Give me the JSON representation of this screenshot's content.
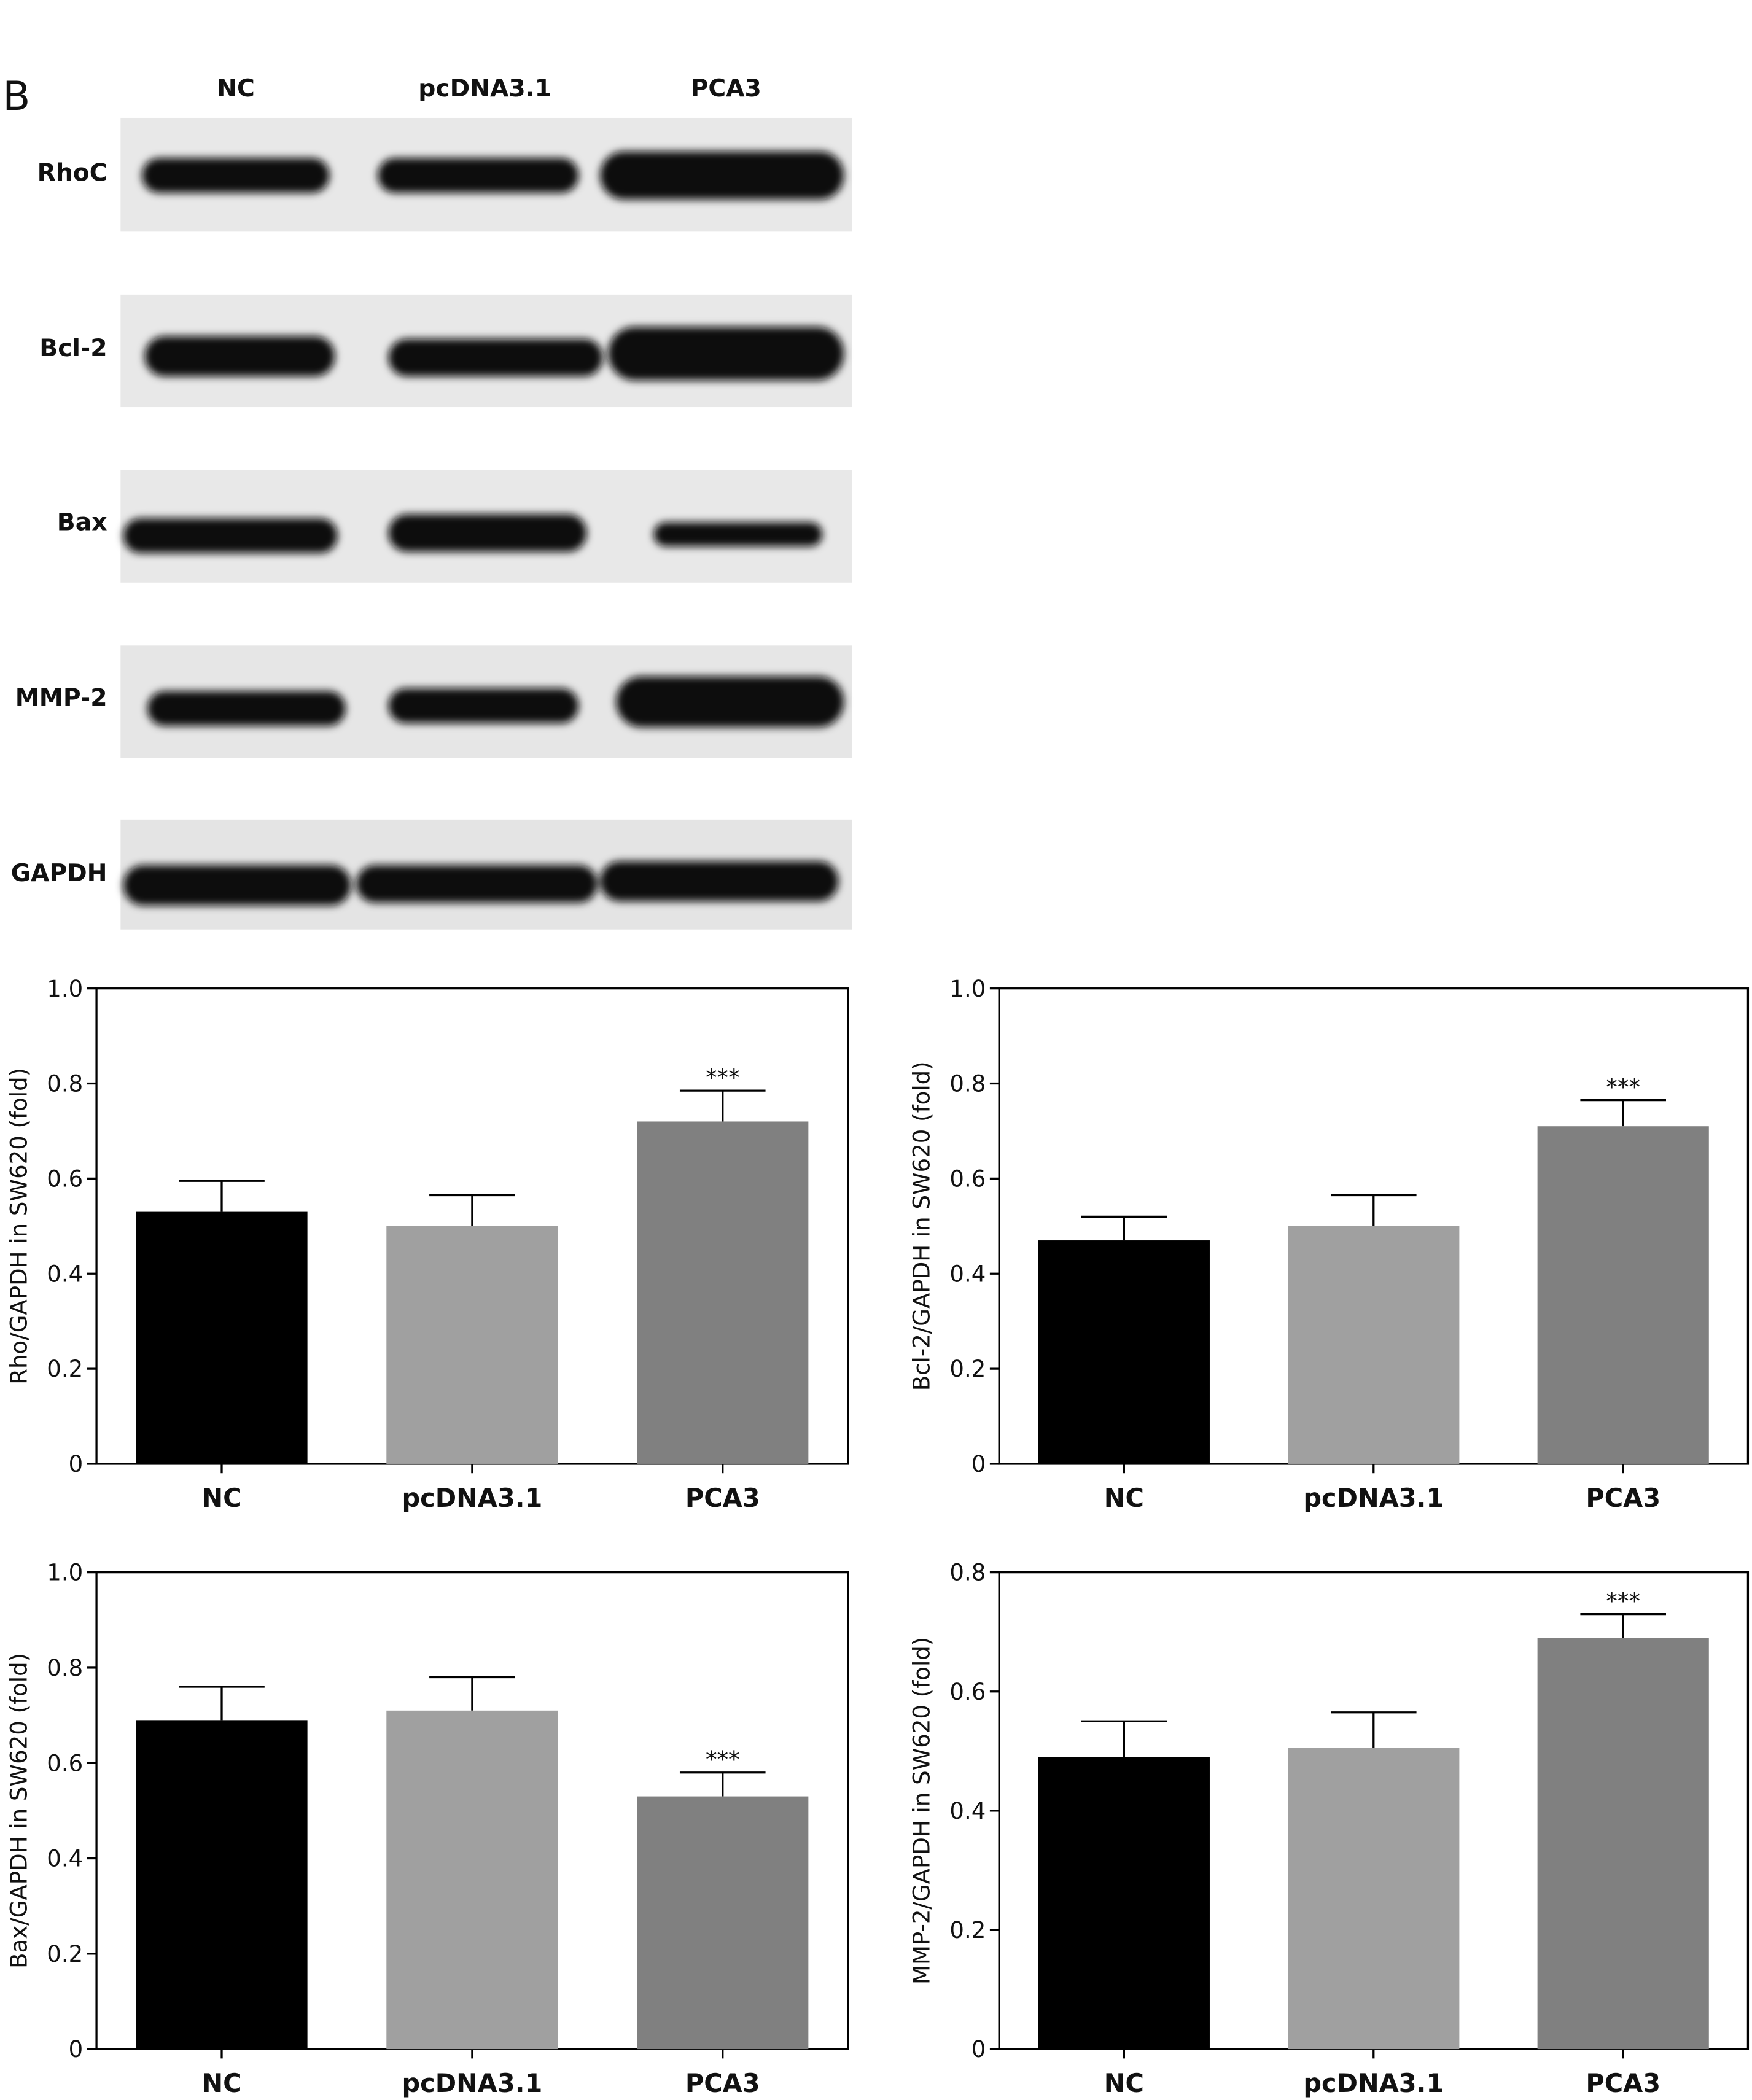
{
  "panel_label": "B",
  "blot": {
    "columns": [
      "NC",
      "pcDNA3.1",
      "PCA3"
    ],
    "rows": [
      "RhoC",
      "Bcl-2",
      "Bax",
      "MMP-2",
      "GAPDH"
    ]
  },
  "chart_data": [
    {
      "type": "bar",
      "y_label": "Rho/GAPDH in SW620 (fold)",
      "categories": [
        "NC",
        "pcDNA3.1",
        "PCA3"
      ],
      "values": [
        0.53,
        0.5,
        0.72
      ],
      "errors": [
        0.065,
        0.065,
        0.065
      ],
      "value_annotations": [
        null,
        null,
        "***"
      ],
      "colors": [
        "#000000",
        "#a0a0a0",
        "#808080"
      ],
      "ylim": [
        0,
        1
      ],
      "yticks": [
        0,
        0.2,
        0.4,
        0.6,
        0.8,
        {
          "value": 1,
          "label": "1.0"
        }
      ]
    },
    {
      "type": "bar",
      "y_label": "Bcl-2/GAPDH in SW620 (fold)",
      "categories": [
        "NC",
        "pcDNA3.1",
        "PCA3"
      ],
      "values": [
        0.47,
        0.5,
        0.71
      ],
      "errors": [
        0.05,
        0.065,
        0.055
      ],
      "value_annotations": [
        null,
        null,
        "***"
      ],
      "colors": [
        "#000000",
        "#a0a0a0",
        "#808080"
      ],
      "ylim": [
        0,
        1
      ],
      "yticks": [
        0,
        0.2,
        0.4,
        0.6,
        0.8,
        {
          "value": 1,
          "label": "1.0"
        }
      ]
    },
    {
      "type": "bar",
      "y_label": "Bax/GAPDH in SW620 (fold)",
      "categories": [
        "NC",
        "pcDNA3.1",
        "PCA3"
      ],
      "values": [
        0.69,
        0.71,
        0.53
      ],
      "errors": [
        0.07,
        0.07,
        0.05
      ],
      "value_annotations": [
        null,
        null,
        "***"
      ],
      "colors": [
        "#000000",
        "#a0a0a0",
        "#808080"
      ],
      "ylim": [
        0,
        1
      ],
      "yticks": [
        0,
        0.2,
        0.4,
        0.6,
        0.8,
        {
          "value": 1,
          "label": "1.0"
        }
      ]
    },
    {
      "type": "bar",
      "y_label": "MMP-2/GAPDH in SW620 (fold)",
      "categories": [
        "NC",
        "pcDNA3.1",
        "PCA3"
      ],
      "values": [
        0.49,
        0.505,
        0.69
      ],
      "errors": [
        0.06,
        0.06,
        0.04
      ],
      "value_annotations": [
        null,
        null,
        "***"
      ],
      "colors": [
        "#000000",
        "#a0a0a0",
        "#808080"
      ],
      "ylim": [
        0,
        0.8
      ],
      "yticks": [
        0,
        0.2,
        0.4,
        0.6,
        0.8
      ]
    }
  ]
}
